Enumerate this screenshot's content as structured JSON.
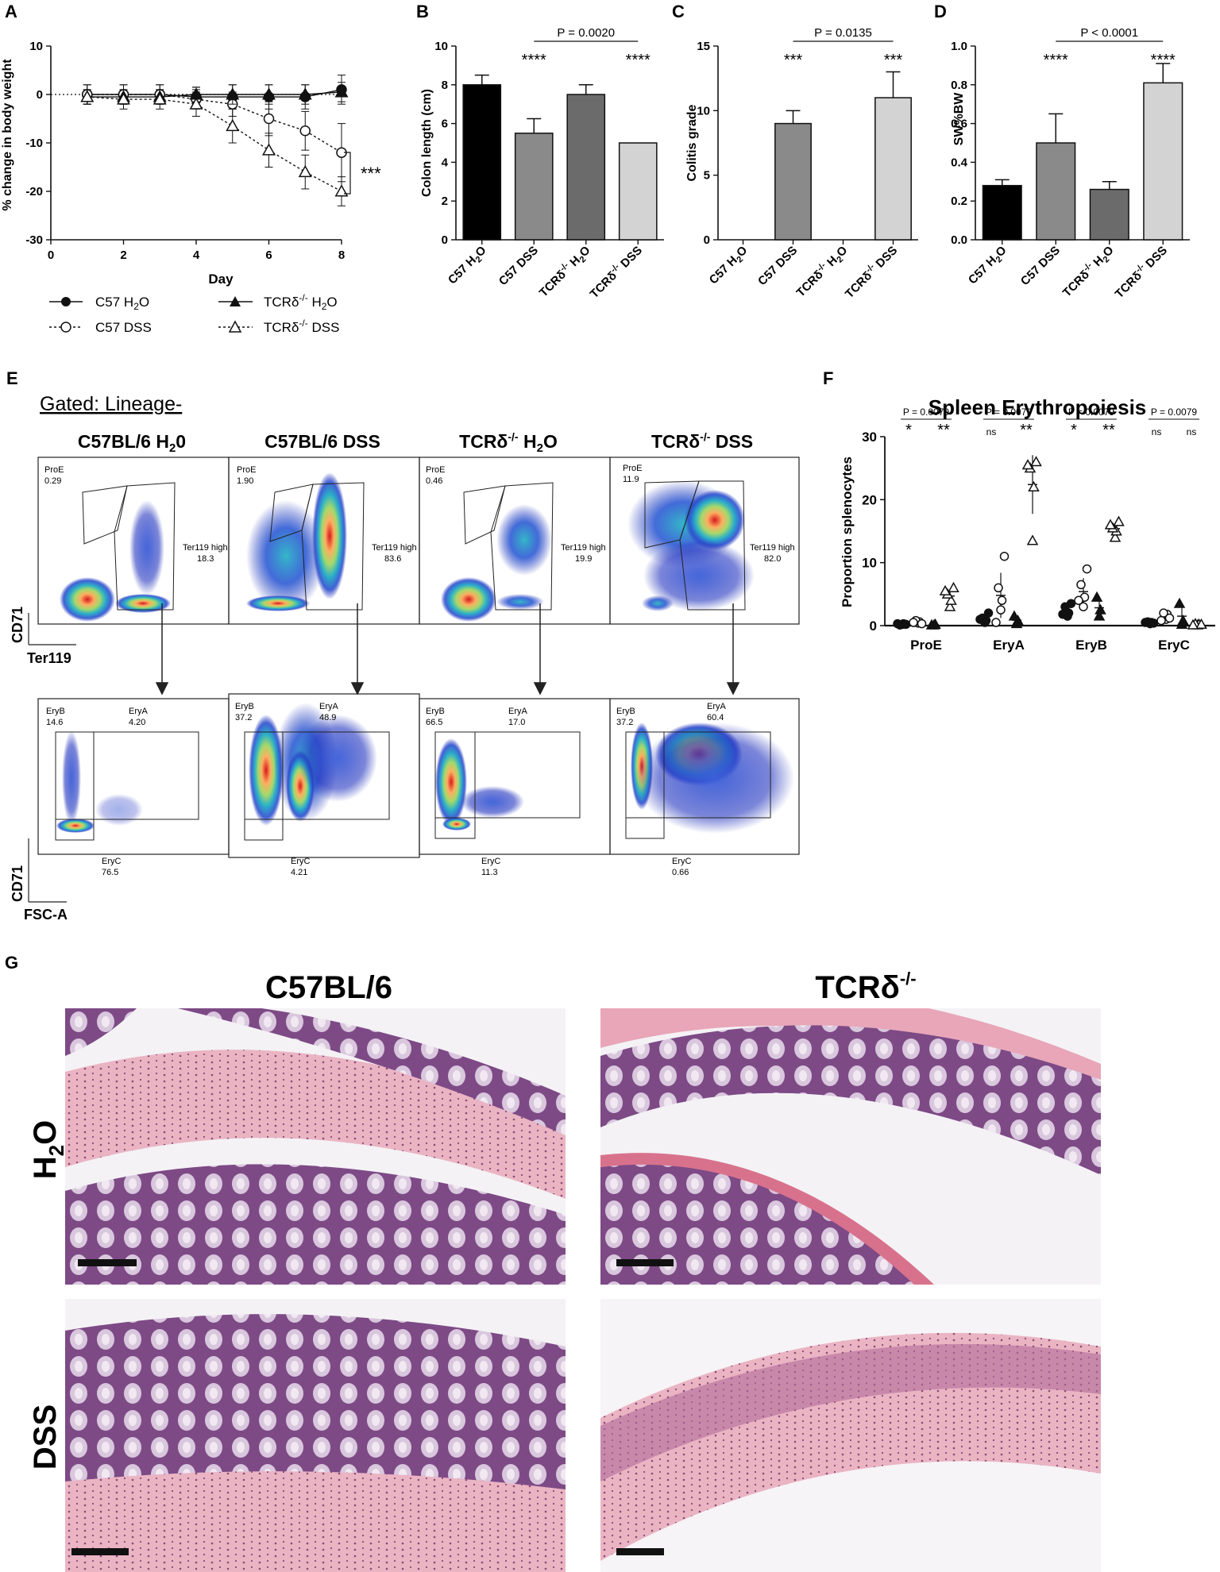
{
  "panel_letters": [
    "A",
    "B",
    "C",
    "D",
    "E",
    "F",
    "G"
  ],
  "panelA": {
    "ylabel": "% change in body weight",
    "xlabel": "Day",
    "yticks": [
      "10",
      "0",
      "-10",
      "-20",
      "-30"
    ],
    "xticks": [
      "0",
      "2",
      "4",
      "6",
      "8"
    ],
    "sig": "***",
    "legend": {
      "c57_h2o": {
        "pre": "C57 H",
        "sub": "2",
        "post": "O"
      },
      "c57_dss": "C57 DSS",
      "tcr_h2o": {
        "pre": "TCRδ",
        "sup": "-/-",
        "mid": " H",
        "sub": "2",
        "post": "O"
      },
      "tcr_dss": {
        "pre": "TCRδ",
        "sup": "-/-",
        "post": " DSS"
      }
    }
  },
  "panelB": {
    "ylabel": "Colon length (cm)",
    "yticks": [
      "10",
      "8",
      "6",
      "4",
      "2",
      "0"
    ],
    "pval": "P = 0.0020",
    "stars1": "****",
    "stars2": "****"
  },
  "panelC": {
    "ylabel": "Colitis grade",
    "yticks": [
      "15",
      "10",
      "5",
      "0"
    ],
    "pval": "P = 0.0135",
    "stars1": "***",
    "stars2": "***"
  },
  "panelD": {
    "ylabel": "SW%BW",
    "yticks": [
      "1.0",
      "0.8",
      "0.6",
      "0.4",
      "0.2",
      "0.0"
    ],
    "pval": "P < 0.0001",
    "stars1": "****",
    "stars2": "****"
  },
  "bar_xlabels": {
    "c57_h2o": {
      "pre": "C57 H",
      "sub": "2",
      "post": "O"
    },
    "c57_dss": "C57 DSS",
    "tcr_h2o": {
      "pre": "TCRδ",
      "sup": "-/-",
      "mid": " H",
      "sub": "2",
      "post": "O"
    },
    "tcr_dss": {
      "pre": "TCRδ",
      "sup": "-/-",
      "post": " DSS"
    }
  },
  "panelE": {
    "gated": "Gated: Lineage-",
    "columns": [
      {
        "title": "C57BL/6 H",
        "sub": "2",
        "post": "0"
      },
      {
        "title": "C57BL/6 DSS"
      },
      {
        "title": "TCRδ",
        "sup": "-/-",
        "post": " H",
        "sub": "2",
        "post2": "O"
      },
      {
        "title": "TCRδ",
        "sup": "-/-",
        "post": " DSS"
      }
    ],
    "top_labels": [
      {
        "proe": "ProE",
        "proe_val": "0.29",
        "ter": "Ter119 high",
        "ter_val": "18.3"
      },
      {
        "proe": "ProE",
        "proe_val": "1.90",
        "ter": "Ter119 high",
        "ter_val": "83.6"
      },
      {
        "proe": "ProE",
        "proe_val": "0.46",
        "ter": "Ter119 high",
        "ter_val": "19.9"
      },
      {
        "proe": "ProE",
        "proe_val": "11.9",
        "ter": "Ter119 high",
        "ter_val": "82.0"
      }
    ],
    "bottom_labels": [
      {
        "eryb": "EryB",
        "eryb_val": "14.6",
        "erya": "EryA",
        "erya_val": "4.20",
        "eryc": "EryC",
        "eryc_val": "76.5"
      },
      {
        "eryb": "EryB",
        "eryb_val": "37.2",
        "erya": "EryA",
        "erya_val": "48.9",
        "eryc": "EryC",
        "eryc_val": "4.21"
      },
      {
        "eryb": "EryB",
        "eryb_val": "66.5",
        "erya": "EryA",
        "erya_val": "17.0",
        "eryc": "EryC",
        "eryc_val": "11.3"
      },
      {
        "eryb": "EryB",
        "eryb_val": "37.2",
        "erya": "EryA",
        "erya_val": "60.4",
        "eryc": "EryC",
        "eryc_val": "0.66"
      }
    ],
    "axis_top": {
      "y": "CD71",
      "x": "Ter119"
    },
    "axis_bottom": {
      "y": "CD71",
      "x": "FSC-A"
    }
  },
  "panelF": {
    "title": "Spleen Erythropoiesis",
    "ylabel": "Proportion splenocytes",
    "yticks": [
      "30",
      "20",
      "10",
      "0"
    ],
    "groups": [
      {
        "name": "ProE",
        "p": "P = 0.0079",
        "s1": "*",
        "s2": "**"
      },
      {
        "name": "EryA",
        "p": "P = 0.0079",
        "s1": "ns",
        "s2": "**"
      },
      {
        "name": "EryB",
        "p": "P = 0.0079",
        "s1": "*",
        "s2": "**"
      },
      {
        "name": "EryC",
        "p": "P = 0.0079",
        "s1": "ns",
        "s2": "ns"
      }
    ]
  },
  "panelG": {
    "col1": "C57BL/6",
    "col2": {
      "pre": "TCRδ",
      "sup": "-/-"
    },
    "row1": {
      "pre": "H",
      "sub": "2",
      "post": "O"
    },
    "row2": "DSS"
  },
  "chart_data": [
    {
      "type": "line",
      "panel": "A",
      "xlabel": "Day",
      "ylabel": "% change in body weight",
      "xlim": [
        0,
        8
      ],
      "ylim": [
        -30,
        10
      ],
      "x": [
        1,
        2,
        3,
        4,
        5,
        6,
        7,
        8
      ],
      "series": [
        {
          "name": "C57 H2O",
          "marker": "filled-circle",
          "line": "solid",
          "values": [
            0,
            0,
            0,
            -0.5,
            -0.5,
            -0.5,
            -0.5,
            1
          ],
          "err": [
            2,
            2,
            2,
            2,
            2.5,
            2.5,
            2.5,
            3
          ]
        },
        {
          "name": "C57 DSS",
          "marker": "open-circle",
          "line": "dotted",
          "values": [
            0,
            0,
            0,
            -1,
            -2,
            -5,
            -7.5,
            -12
          ],
          "err": [
            2,
            2,
            2,
            2,
            2.5,
            3.5,
            4,
            6
          ]
        },
        {
          "name": "TCRδ-/- H2O",
          "marker": "filled-triangle",
          "line": "solid",
          "values": [
            -0.5,
            -0.5,
            -0.5,
            0,
            0,
            0,
            0,
            0.5
          ],
          "err": [
            1.5,
            1.5,
            1.5,
            1.5,
            2,
            2,
            2,
            2
          ]
        },
        {
          "name": "TCRδ-/- DSS",
          "marker": "open-triangle",
          "line": "dotted",
          "values": [
            -0.5,
            -1,
            -1,
            -2,
            -6.5,
            -11.5,
            -16,
            -20
          ],
          "err": [
            1.5,
            2,
            2,
            2.5,
            3.5,
            3.5,
            3.5,
            3
          ]
        }
      ]
    },
    {
      "type": "bar",
      "panel": "B",
      "ylabel": "Colon length (cm)",
      "ylim": [
        0,
        10
      ],
      "categories": [
        "C57 H2O",
        "C57 DSS",
        "TCRδ-/- H2O",
        "TCRδ-/- DSS"
      ],
      "values": [
        8.0,
        5.5,
        7.5,
        5.0
      ],
      "err": [
        0.5,
        0.75,
        0.5,
        0
      ],
      "colors": [
        "#000000",
        "#8a8a8a",
        "#6b6b6b",
        "#d3d3d3"
      ]
    },
    {
      "type": "bar",
      "panel": "C",
      "ylabel": "Colitis grade",
      "ylim": [
        0,
        15
      ],
      "categories": [
        "C57 H2O",
        "C57 DSS",
        "TCRδ-/- H2O",
        "TCRδ-/- DSS"
      ],
      "values": [
        0,
        9,
        0,
        11
      ],
      "err": [
        0,
        1,
        0,
        2
      ],
      "colors": [
        "#000000",
        "#8a8a8a",
        "#6b6b6b",
        "#d3d3d3"
      ]
    },
    {
      "type": "bar",
      "panel": "D",
      "ylabel": "SW%BW",
      "ylim": [
        0,
        1.0
      ],
      "categories": [
        "C57 H2O",
        "C57 DSS",
        "TCRδ-/- H2O",
        "TCRδ-/- DSS"
      ],
      "values": [
        0.28,
        0.5,
        0.26,
        0.81
      ],
      "err": [
        0.03,
        0.15,
        0.04,
        0.1
      ],
      "colors": [
        "#000000",
        "#8a8a8a",
        "#6b6b6b",
        "#d3d3d3"
      ]
    },
    {
      "type": "scatter",
      "panel": "F",
      "title": "Spleen Erythropoiesis",
      "ylabel": "Proportion splenocytes",
      "ylim": [
        0,
        30
      ],
      "categories": [
        "ProE",
        "EryA",
        "EryB",
        "EryC"
      ],
      "series": [
        {
          "name": "C57 H2O",
          "marker": "filled-circle",
          "values": [
            [
              0.2,
              0.3,
              0.1,
              0.2,
              0.3
            ],
            [
              0.5,
              0.8,
              1.2,
              2.0,
              1.0
            ],
            [
              1.5,
              2.0,
              3.0,
              3.5,
              1.8
            ],
            [
              0.3,
              0.5,
              0.6,
              0.4,
              0.5
            ]
          ]
        },
        {
          "name": "C57 DSS",
          "marker": "open-circle",
          "values": [
            [
              0.4,
              0.6,
              0.8,
              0.3,
              0.5
            ],
            [
              2.5,
              4.0,
              6.0,
              11.0,
              0.5
            ],
            [
              3.0,
              4.5,
              6.5,
              9.0,
              4.0
            ],
            [
              1.0,
              1.8,
              2.0,
              1.2,
              0.8
            ]
          ]
        },
        {
          "name": "TCRδ-/- H2O",
          "marker": "filled-triangle",
          "values": [
            [
              0.1,
              0.2,
              0.1
            ],
            [
              0.3,
              0.8,
              1.5
            ],
            [
              1.5,
              2.5,
              4.5
            ],
            [
              0.2,
              0.8,
              3.5
            ]
          ]
        },
        {
          "name": "TCRδ-/- DSS",
          "marker": "open-triangle",
          "values": [
            [
              3.0,
              4.0,
              5.0,
              6.0,
              5.5
            ],
            [
              13.5,
              22.0,
              25.0,
              26.0,
              25.5
            ],
            [
              14.0,
              15.0,
              15.5,
              16.5,
              16.0
            ],
            [
              0.1,
              0.2,
              0.3,
              0.2,
              0.1
            ]
          ]
        }
      ]
    }
  ]
}
